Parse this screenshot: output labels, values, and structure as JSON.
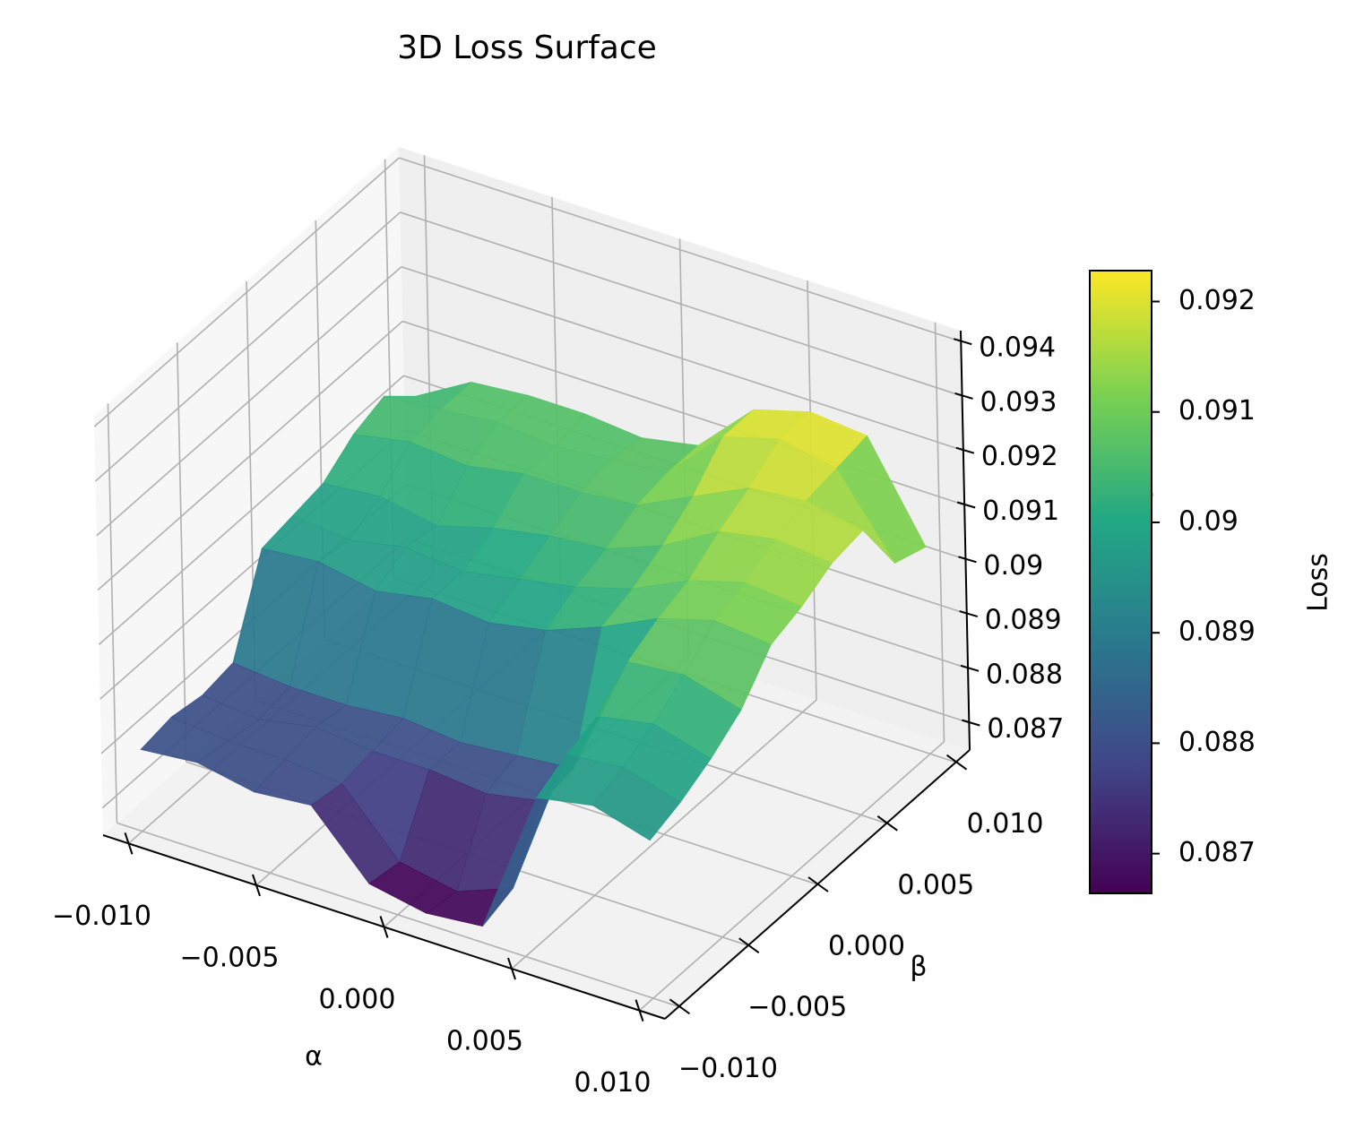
{
  "chart_data": {
    "type": "surface3d",
    "title": "3D Loss Surface",
    "x_label": "α",
    "y_label": "β",
    "z_label": "Loss",
    "colorbar_label": "Loss",
    "colormap": "viridis",
    "x": [
      -0.01,
      -0.00778,
      -0.00556,
      -0.00333,
      -0.00111,
      0.00111,
      0.00333,
      0.00556,
      0.00778,
      0.01
    ],
    "y": [
      -0.01,
      -0.00778,
      -0.00556,
      -0.00333,
      -0.00111,
      0.00111,
      0.00333,
      0.00556,
      0.00778,
      0.01
    ],
    "z": [
      [
        0.088,
        0.0881,
        0.0879,
        0.088,
        0.0869,
        0.0867,
        0.0868,
        0.0895,
        0.0897,
        0.0894
      ],
      [
        0.0881,
        0.088,
        0.088,
        0.0879,
        0.0868,
        0.0866,
        0.087,
        0.0898,
        0.0899,
        0.0896
      ],
      [
        0.088,
        0.0879,
        0.0881,
        0.088,
        0.088,
        0.0879,
        0.0881,
        0.09,
        0.0902,
        0.0899
      ],
      [
        0.0881,
        0.088,
        0.088,
        0.0881,
        0.088,
        0.0881,
        0.0882,
        0.0905,
        0.0906,
        0.0903
      ],
      [
        0.0897,
        0.0898,
        0.0896,
        0.0898,
        0.0897,
        0.0899,
        0.0903,
        0.0908,
        0.0911,
        0.091
      ],
      [
        0.0898,
        0.0897,
        0.0899,
        0.0898,
        0.09,
        0.0902,
        0.0905,
        0.091,
        0.0913,
        0.0912
      ],
      [
        0.0899,
        0.09,
        0.0898,
        0.0901,
        0.0903,
        0.0904,
        0.0908,
        0.0914,
        0.0916,
        0.0915
      ],
      [
        0.0903,
        0.0905,
        0.0904,
        0.0906,
        0.0906,
        0.0907,
        0.0912,
        0.0917,
        0.0918,
        0.0916
      ],
      [
        0.0905,
        0.0906,
        0.0907,
        0.0906,
        0.0907,
        0.0908,
        0.0918,
        0.0921,
        0.0919,
        0.0905
      ],
      [
        0.09,
        0.0906,
        0.0907,
        0.0907,
        0.0906,
        0.0908,
        0.0918,
        0.0921,
        0.092,
        0.0903
      ]
    ],
    "xlim": [
      -0.011,
      0.011
    ],
    "ylim": [
      -0.011,
      0.011
    ],
    "zlim": [
      0.0865,
      0.0942
    ],
    "xticks": [
      {
        "value": -0.01,
        "label": "−0.010"
      },
      {
        "value": -0.005,
        "label": "−0.005"
      },
      {
        "value": 0,
        "label": "0.000"
      },
      0.005,
      {
        "value": 0.01,
        "label": "0.010"
      }
    ],
    "yticks": [
      {
        "value": -0.01,
        "label": "−0.010"
      },
      {
        "value": -0.005,
        "label": "−0.005"
      },
      {
        "value": 0,
        "label": "0.000"
      },
      0.005,
      {
        "value": 0.01,
        "label": "0.010"
      }
    ],
    "zticks": [
      0.087,
      0.088,
      0.089,
      0.09,
      0.091,
      0.092,
      0.093,
      0.094
    ],
    "clim": [
      0.08664,
      0.09228
    ],
    "cticks": [
      0.087,
      0.088,
      0.089,
      0.09,
      0.091,
      0.092
    ],
    "grid": true
  }
}
